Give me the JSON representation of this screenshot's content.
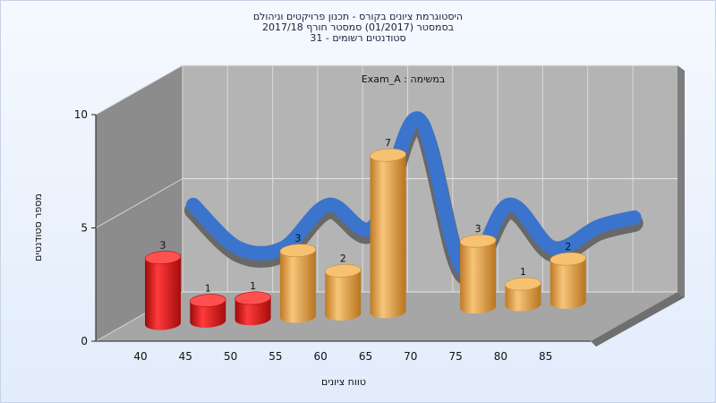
{
  "header": {
    "line1": "היסטוגרמת ציונים בקורס - תכנון פרויקטים וניהולם",
    "line2": "בסמסטר  (01/2017)  סמסטר חורף 2017/18",
    "line3": "סטודנטים רשומים - 31"
  },
  "chart_data": {
    "type": "bar",
    "title": "היסטוגרמת ציונים בקורס - תכנון פרויקטים וניהולם",
    "subtitle": "Exam_A : במשימה",
    "xlabel": "טווח ציונים",
    "ylabel": "מספר סטודנטים",
    "x_ticks": [
      "40",
      "45",
      "50",
      "55",
      "60",
      "65",
      "70",
      "75",
      "80",
      "85"
    ],
    "y_ticks": [
      "0",
      "5",
      "10"
    ],
    "ylim": [
      0,
      10
    ],
    "grid": true,
    "categories": [
      "40",
      "45",
      "50",
      "55",
      "60",
      "65",
      "70",
      "75",
      "80",
      "85"
    ],
    "values": [
      3,
      1,
      1,
      3,
      2,
      7,
      null,
      3,
      1,
      2
    ],
    "value_labels": [
      "3",
      "1",
      "1",
      "3",
      "2",
      "7",
      "",
      "3",
      "1",
      "2"
    ],
    "bar_colors": [
      "#e02020",
      "#e02020",
      "#e02020",
      "#e8a64a",
      "#e8a64a",
      "#e8a64a",
      "#e8a64a",
      "#e8a64a",
      "#e8a64a",
      "#e8a64a"
    ],
    "curve_colors": {
      "front": "#3a74cc",
      "back": "#5f5f5f"
    },
    "colors": {
      "wall": "#b4b4b4",
      "left_wall": "#8c8c8c",
      "floor": "#a6a6a6"
    }
  }
}
